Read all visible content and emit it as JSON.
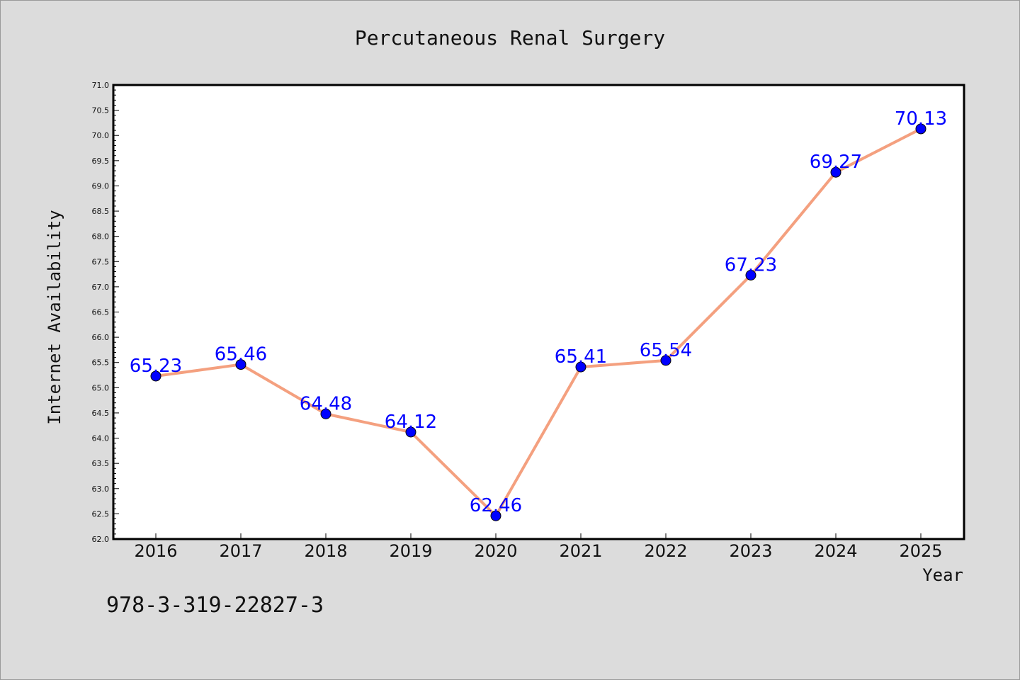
{
  "chart_data": {
    "type": "line",
    "title": "Percutaneous Renal Surgery",
    "xlabel": "Year",
    "ylabel": "Internet Availability",
    "categories": [
      "2016",
      "2017",
      "2018",
      "2019",
      "2020",
      "2021",
      "2022",
      "2023",
      "2024",
      "2025"
    ],
    "series": [
      {
        "values": [
          65.23,
          65.46,
          64.48,
          64.12,
          62.46,
          65.41,
          65.54,
          67.23,
          69.27,
          70.13
        ],
        "data_labels": [
          "65.23",
          "65.46",
          "64.48",
          "64.12",
          "62.46",
          "65.41",
          "65.54",
          "67.23",
          "69.27",
          "70.13"
        ]
      }
    ],
    "ylim": [
      62.0,
      71.0
    ],
    "yticks": [
      "62.0",
      "62.5",
      "63.0",
      "63.5",
      "64.0",
      "64.5",
      "65.0",
      "65.5",
      "66.0",
      "66.5",
      "67.0",
      "67.5",
      "68.0",
      "68.5",
      "69.0",
      "69.5",
      "70.0",
      "70.5",
      "71.0"
    ],
    "grid": false,
    "legend": "none",
    "colors": {
      "line": "#f4a07f",
      "marker": "#0000ff",
      "data_label": "#0000ff",
      "background": "#dcdcdc",
      "plot_background": "#ffffff"
    }
  },
  "annotation": {
    "text": "978-3-319-22827-3"
  }
}
